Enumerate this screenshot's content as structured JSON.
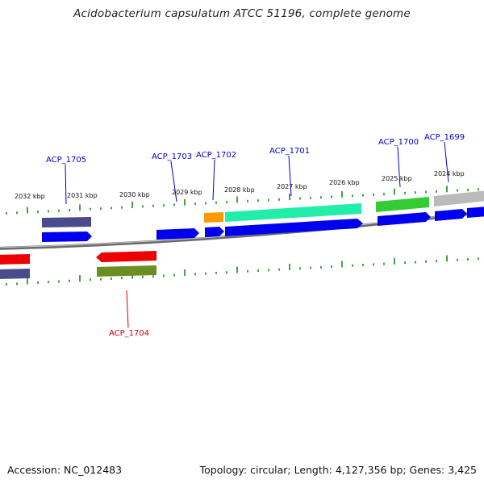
{
  "title": "Acidobacterium capsulatum ATCC 51196, complete genome",
  "accession": "Accession: NC_012483",
  "summary": "Topology: circular; Length: 4,127,356 bp; Genes: 3,425",
  "colors": {
    "backbone": "#808080",
    "tick": "#1a8a1a",
    "label_forward": "#0000cc",
    "label_reverse": "#cc0000",
    "cds_forward": "#0000ee",
    "cds_reverse": "#ee0000"
  },
  "kbp_labels": [
    "2032 kbp",
    "2031 kbp",
    "2030 kbp",
    "2029 kbp",
    "2028 kbp",
    "2027 kbp",
    "2026 kbp",
    "2025 kbp",
    "2024 kbp"
  ],
  "genes": [
    {
      "id": "ACP_1705",
      "strand": "forward"
    },
    {
      "id": "ACP_1703",
      "strand": "forward"
    },
    {
      "id": "ACP_1702",
      "strand": "forward"
    },
    {
      "id": "ACP_1701",
      "strand": "forward"
    },
    {
      "id": "ACP_1700",
      "strand": "forward"
    },
    {
      "id": "ACP_1699",
      "strand": "forward"
    },
    {
      "id": "ACP_1704",
      "strand": "reverse"
    }
  ],
  "feature_colors": {
    "cog_slate": "#4a4a8c",
    "cog_olive": "#6b8e23",
    "cog_orange": "#ff9900",
    "cog_aqua": "#22eeaa",
    "cog_green": "#33cc33",
    "cog_gray": "#bbbbbb"
  }
}
